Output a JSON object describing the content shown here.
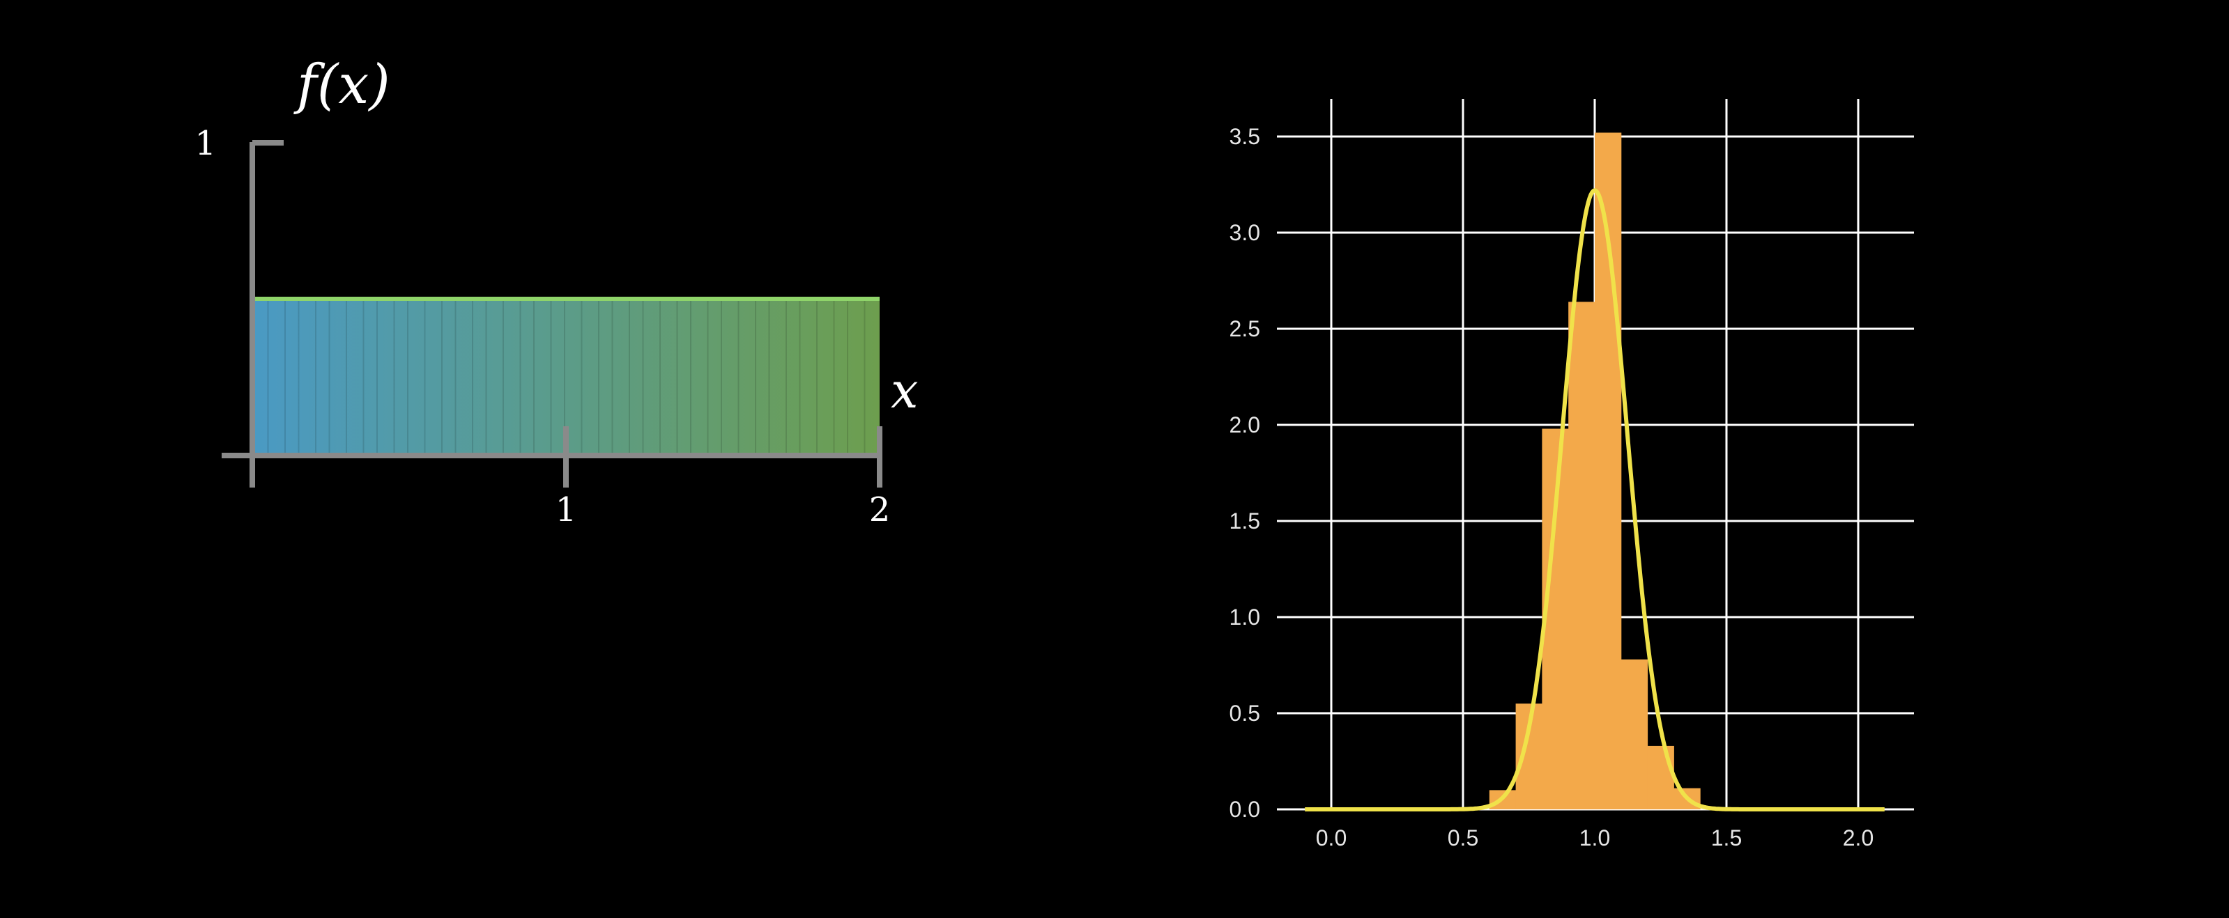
{
  "colors": {
    "background": "#000000",
    "axis_gray": "#8a8a8a",
    "uniform_left": "#4a9ac4",
    "uniform_right": "#6d9e4e",
    "uniform_top_edge": "#8fd46a",
    "hist_bar": "#f3a94a",
    "curve": "#f0e24a",
    "grid": "#ffffff"
  },
  "left_plot": {
    "y_axis_label": "f(x)",
    "x_axis_label": "x",
    "y_tick_labels": [
      "1"
    ],
    "x_tick_labels": [
      "1",
      "2"
    ]
  },
  "chart_data": [
    {
      "type": "area",
      "title": "",
      "xlabel": "x",
      "ylabel": "f(x)",
      "xlim": [
        0,
        2
      ],
      "ylim": [
        0,
        1
      ],
      "x_ticks": [
        1,
        2
      ],
      "y_ticks": [
        1
      ],
      "x": [
        0,
        2
      ],
      "y": [
        0.5,
        0.5
      ],
      "fill": "gradient blue-to-green",
      "grid": false
    },
    {
      "type": "bar",
      "title": "",
      "xlabel": "",
      "ylabel": "",
      "xlim": [
        -0.1,
        2.1
      ],
      "ylim": [
        0,
        3.5
      ],
      "x_ticks": [
        "0.0",
        "0.5",
        "1.0",
        "1.5",
        "2.0"
      ],
      "y_ticks": [
        "0.0",
        "0.5",
        "1.0",
        "1.5",
        "2.0",
        "2.5",
        "3.0",
        "3.5"
      ],
      "bin_width": 0.1,
      "bin_starts": [
        0.6,
        0.7,
        0.8,
        0.9,
        1.0,
        1.1,
        1.2,
        1.3
      ],
      "values": [
        0.1,
        0.55,
        1.98,
        2.64,
        3.52,
        0.78,
        0.33,
        0.11
      ],
      "overlay_curve": {
        "type": "line",
        "shape": "normal density",
        "mean": 1.0,
        "std": 0.124,
        "peak": 3.22
      },
      "grid": true
    }
  ]
}
